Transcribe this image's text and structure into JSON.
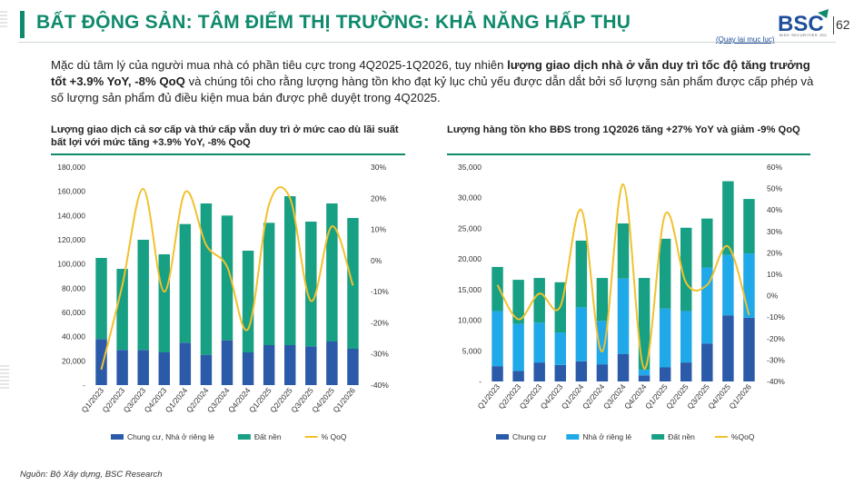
{
  "header": {
    "title": "BẤT ĐỘNG SẢN: TÂM ĐIỂM THỊ TRƯỜNG: KHẢ NĂNG HẤP THỤ",
    "logo_text": "BSC",
    "logo_subtext": "BIDV SECURITIES JSC",
    "page_number": "62",
    "back_link": "(Quay lại mục lục)"
  },
  "intro": {
    "part1": "Mặc dù tâm lý của người mua nhà có phần tiêu cực trong 4Q2025-1Q2026, tuy nhiên ",
    "bold": "lượng giao dịch nhà ở vẫn duy trì tốc độ tăng trưởng tốt +3.9% YoY, -8% QoQ",
    "part2": " và chúng tôi cho rằng lượng hàng tồn kho đạt kỷ lục chủ yếu được dẫn dắt bởi số lượng sản phẩm được cấp phép và số lượng sản phẩm đủ điều kiện mua bán được phê duyệt trong 4Q2025."
  },
  "source": "Nguồn: Bộ Xây dựng, BSC Research",
  "colors": {
    "accent": "#0f8a6c",
    "dark_blue": "#2b5aa8",
    "light_blue": "#1fa9e8",
    "teal": "#17a084",
    "gold": "#f2c12e"
  },
  "chart_data": [
    {
      "type": "bar",
      "stacked": true,
      "title": "Lượng giao dịch cả sơ cấp và thứ cấp vẫn duy trì ở mức cao dù lãi suất bất lợi với mức tăng +3.9% YoY, -8% QoQ",
      "categories": [
        "Q1/2023",
        "Q2/2023",
        "Q3/2023",
        "Q4/2023",
        "Q1/2024",
        "Q2/2024",
        "Q3/2024",
        "Q4/2024",
        "Q1/2025",
        "Q2/2025",
        "Q3/2025",
        "Q4/2025",
        "Q1/2026"
      ],
      "series": [
        {
          "name": "Chung cư, Nhà ở riêng lẻ",
          "kind": "bar",
          "color": "#2b5aa8",
          "values": [
            38000,
            29000,
            29000,
            27000,
            35000,
            25000,
            37000,
            27000,
            33000,
            33000,
            32000,
            36000,
            30000
          ]
        },
        {
          "name": "Đất nền",
          "kind": "bar",
          "color": "#17a084",
          "values": [
            67000,
            67000,
            91000,
            81000,
            98000,
            125000,
            103000,
            84000,
            101000,
            123000,
            103000,
            114000,
            108000
          ]
        },
        {
          "name": "% QoQ",
          "kind": "line",
          "axis": "right",
          "color": "#f2c12e",
          "values": [
            -35,
            -8,
            23,
            -10,
            22,
            5,
            -2,
            -22,
            18,
            20,
            -13,
            11,
            -8
          ]
        }
      ],
      "y_left": {
        "min": 0,
        "max": 180000,
        "step": 20000,
        "ticks": [
          "-",
          "20,000",
          "40,000",
          "60,000",
          "80,000",
          "100,000",
          "120,000",
          "140,000",
          "160,000",
          "180,000"
        ]
      },
      "y_right": {
        "min": -40,
        "max": 30,
        "step": 10,
        "ticks": [
          "-40%",
          "-30%",
          "-20%",
          "-10%",
          "0%",
          "10%",
          "20%",
          "30%"
        ]
      },
      "legend_position": "bottom",
      "grid": false
    },
    {
      "type": "bar",
      "stacked": true,
      "title": "Lượng hàng tồn kho BĐS trong 1Q2026 tăng +27% YoY và giảm -9% QoQ",
      "categories": [
        "Q1/2023",
        "Q2/2023",
        "Q3/2023",
        "Q4/2023",
        "Q1/2024",
        "Q2/2024",
        "Q3/2024",
        "Q4/2024",
        "Q1/2025",
        "Q2/2025",
        "Q3/2025",
        "Q4/2025",
        "Q1/2026"
      ],
      "series": [
        {
          "name": "Chung cư",
          "kind": "bar",
          "color": "#2b5aa8",
          "values": [
            2500,
            1700,
            3100,
            2700,
            3300,
            2800,
            4500,
            1000,
            2300,
            3100,
            6200,
            10800,
            10400
          ]
        },
        {
          "name": "Nhà ở riêng lẻ",
          "kind": "bar",
          "color": "#1fa9e8",
          "values": [
            9000,
            7700,
            6500,
            5300,
            8800,
            7100,
            12300,
            900,
            9600,
            8400,
            12400,
            9900,
            10500
          ]
        },
        {
          "name": "Đất nền",
          "kind": "bar",
          "color": "#17a084",
          "values": [
            7200,
            7200,
            7300,
            8200,
            10900,
            7000,
            9000,
            15000,
            11400,
            13600,
            8000,
            12000,
            8900
          ]
        },
        {
          "name": "%QoQ",
          "kind": "line",
          "axis": "right",
          "color": "#f2c12e",
          "values": [
            5,
            -11,
            1,
            -5,
            40,
            -26,
            52,
            -34,
            38,
            6,
            5,
            23,
            -9
          ]
        }
      ],
      "y_left": {
        "min": 0,
        "max": 35000,
        "step": 5000,
        "ticks": [
          "-",
          "5,000",
          "10,000",
          "15,000",
          "20,000",
          "25,000",
          "30,000",
          "35,000"
        ]
      },
      "y_right": {
        "min": -40,
        "max": 60,
        "step": 10,
        "ticks": [
          "-40%",
          "-30%",
          "-20%",
          "-10%",
          "0%",
          "10%",
          "20%",
          "30%",
          "40%",
          "50%",
          "60%"
        ]
      },
      "legend_position": "bottom",
      "grid": false
    }
  ]
}
